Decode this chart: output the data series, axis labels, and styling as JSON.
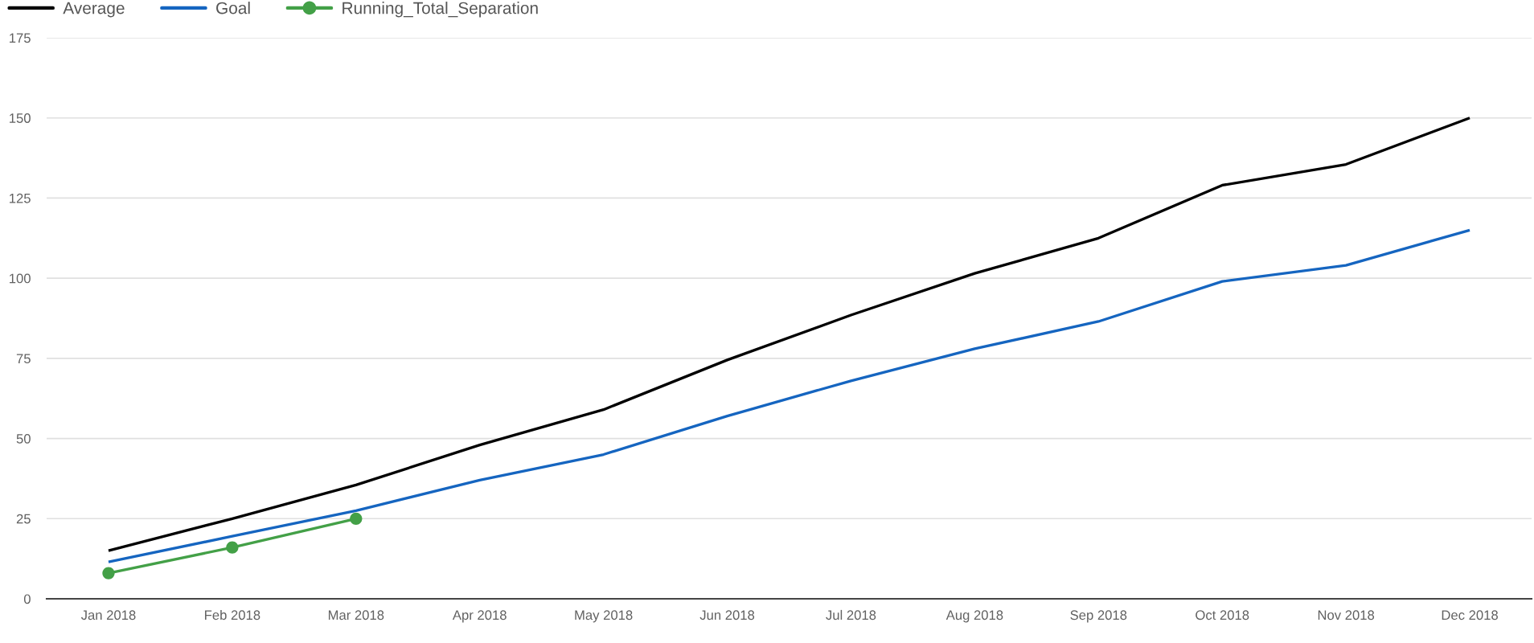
{
  "chart_data": {
    "type": "line",
    "categories": [
      "Jan 2018",
      "Feb 2018",
      "Mar 2018",
      "Apr 2018",
      "May 2018",
      "Jun 2018",
      "Jul 2018",
      "Aug 2018",
      "Sep 2018",
      "Oct 2018",
      "Nov 2018",
      "Dec 2018"
    ],
    "series": [
      {
        "name": "Average",
        "color": "#000000",
        "values": [
          15,
          25,
          35.5,
          48,
          59,
          74.5,
          88.5,
          101.5,
          112.5,
          129,
          135.5,
          150
        ]
      },
      {
        "name": "Goal",
        "color": "#1565c0",
        "values": [
          11.5,
          19.5,
          27.5,
          37,
          45,
          57,
          68,
          78,
          86.5,
          99,
          104,
          115
        ]
      },
      {
        "name": "Running_Total_Separation",
        "color": "#43a047",
        "marker": "circle",
        "values": [
          8,
          16,
          25,
          null,
          null,
          null,
          null,
          null,
          null,
          null,
          null,
          null
        ]
      }
    ],
    "ylim": [
      0,
      175
    ],
    "yticks": [
      0,
      25,
      50,
      75,
      100,
      125,
      150,
      175
    ],
    "grid": "y",
    "legend": "top left",
    "line_style": "solid"
  }
}
